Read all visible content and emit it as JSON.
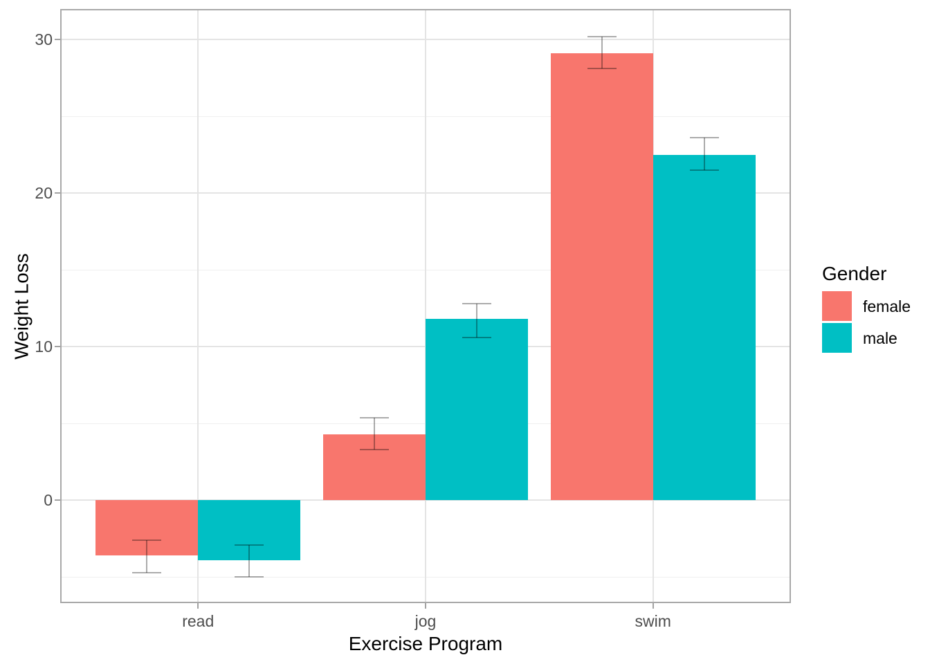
{
  "chart_data": {
    "type": "bar",
    "title": "",
    "xlabel": "Exercise Program",
    "ylabel": "Weight Loss",
    "categories": [
      "read",
      "jog",
      "swim"
    ],
    "series": [
      {
        "name": "female",
        "color": "#F8766D",
        "values": [
          -3.6,
          4.3,
          29.1
        ],
        "error_low": [
          -4.7,
          3.3,
          28.1
        ],
        "error_high": [
          -2.6,
          5.4,
          30.2
        ]
      },
      {
        "name": "male",
        "color": "#00BFC4",
        "values": [
          -3.9,
          11.8,
          22.5
        ],
        "error_low": [
          -5.0,
          10.6,
          21.5
        ],
        "error_high": [
          -2.9,
          12.8,
          23.6
        ]
      }
    ],
    "y_ticks": [
      0,
      10,
      20,
      30
    ],
    "y_minor_ticks": [
      -5,
      5,
      15,
      25
    ],
    "ylim": [
      -6.6,
      31.9
    ],
    "grid": true,
    "bar_layout": "dodge",
    "error_bars": "yes",
    "legend_position": "right",
    "legend_title": "Gender"
  },
  "legend": {
    "title": "Gender",
    "items": [
      {
        "label": "female",
        "color": "#F8766D"
      },
      {
        "label": "male",
        "color": "#00BFC4"
      }
    ]
  },
  "style_colors": {
    "panel_border": "#a8a8a8",
    "grid_major": "#e4e4e4",
    "grid_minor": "#f0f0f0",
    "tick_text": "#4d4d4d",
    "error_bar": "rgba(0,0,0,0.33)",
    "background": "#ffffff"
  }
}
